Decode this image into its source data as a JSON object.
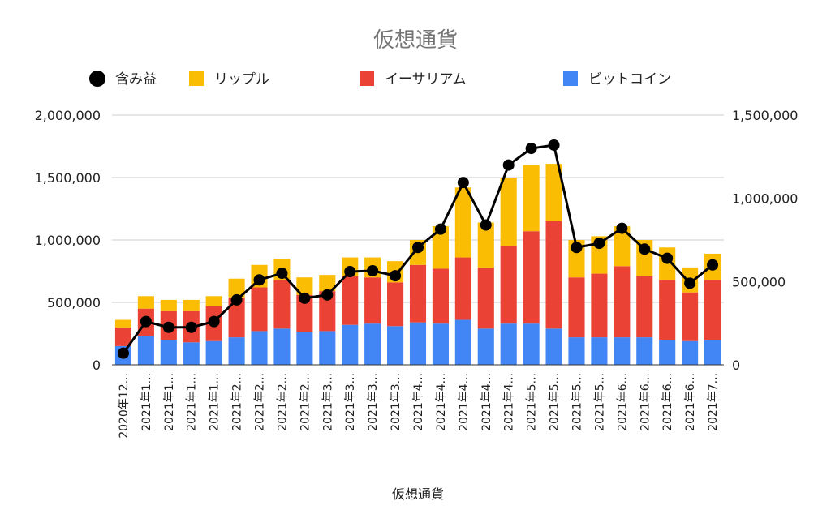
{
  "chart_data": {
    "type": "bar",
    "stacked": true,
    "title": "仮想通貨",
    "xlabel": "仮想通貨",
    "ylabel": "",
    "ylim": [
      0,
      2000000
    ],
    "y2lim": [
      0,
      1500000
    ],
    "grid": true,
    "legend_position": "top",
    "y_ticks": [
      "0",
      "500,000",
      "1,000,000",
      "1,500,000",
      "2,000,000"
    ],
    "y2_ticks": [
      "0",
      "500,000",
      "1,000,000",
      "1,500,000"
    ],
    "categories": [
      "2020年12...",
      "2021年1...",
      "2021年1...",
      "2021年1...",
      "2021年1...",
      "2021年2...",
      "2021年2...",
      "2021年2...",
      "2021年2...",
      "2021年3...",
      "2021年3...",
      "2021年3...",
      "2021年3...",
      "2021年4...",
      "2021年4...",
      "2021年4...",
      "2021年4...",
      "2021年4...",
      "2021年5...",
      "2021年5...",
      "2021年5...",
      "2021年5...",
      "2021年6...",
      "2021年6...",
      "2021年6...",
      "2021年6...",
      "2021年7..."
    ],
    "legend_order": [
      "含み益",
      "リップル",
      "イーサリアム",
      "ビットコイン"
    ],
    "series": [
      {
        "name": "ビットコイン",
        "color": "#4285f4",
        "values": [
          150000,
          230000,
          200000,
          180000,
          190000,
          220000,
          270000,
          290000,
          260000,
          270000,
          320000,
          330000,
          310000,
          340000,
          330000,
          360000,
          290000,
          330000,
          330000,
          290000,
          220000,
          220000,
          220000,
          220000,
          200000,
          190000,
          200000
        ]
      },
      {
        "name": "イーサリアム",
        "color": "#ea4335",
        "values": [
          150000,
          220000,
          230000,
          250000,
          280000,
          320000,
          350000,
          390000,
          300000,
          320000,
          390000,
          370000,
          350000,
          460000,
          440000,
          500000,
          490000,
          620000,
          740000,
          860000,
          480000,
          510000,
          570000,
          490000,
          480000,
          390000,
          480000
        ]
      },
      {
        "name": "リップル",
        "color": "#fbbc04",
        "values": [
          60000,
          100000,
          90000,
          90000,
          80000,
          150000,
          180000,
          170000,
          140000,
          130000,
          150000,
          160000,
          170000,
          200000,
          340000,
          560000,
          360000,
          550000,
          530000,
          460000,
          300000,
          300000,
          320000,
          290000,
          260000,
          200000,
          210000
        ]
      },
      {
        "name": "含み益",
        "color": "#000000",
        "axis": "right",
        "type": "line",
        "values": [
          70000,
          260000,
          225000,
          225000,
          260000,
          390000,
          510000,
          550000,
          400000,
          420000,
          560000,
          565000,
          535000,
          705000,
          815000,
          1095000,
          840000,
          1200000,
          1300000,
          1320000,
          705000,
          730000,
          820000,
          695000,
          640000,
          490000,
          600000
        ]
      }
    ]
  }
}
